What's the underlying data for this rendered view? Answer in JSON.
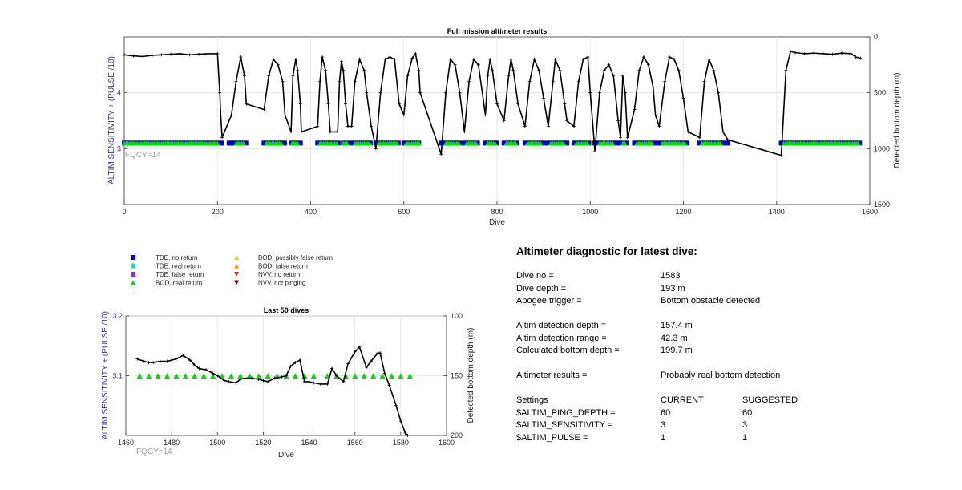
{
  "chart_data": [
    {
      "type": "scatter",
      "title": "Full mission altimeter results",
      "xlabel": "Dive",
      "ylabel_left": "ALTIM SENSITIVITY + (PULSE /10)",
      "ylabel_right": "Detected bottom depth (m)",
      "annotation": "FQCY=14",
      "xlim": [
        0,
        1600
      ],
      "ylim_left": [
        2,
        5
      ],
      "ylim_right": [
        1500,
        0
      ],
      "xticks": [
        "0",
        "200",
        "400",
        "600",
        "800",
        "1000",
        "1200",
        "1400",
        "1600"
      ],
      "yticks_left": [
        "3",
        "4"
      ],
      "yticks_right": [
        "0",
        "500",
        "1000",
        "1500"
      ],
      "grid": true,
      "series": [
        {
          "name": "TDE, no return",
          "color": "#0000cc",
          "marker": "square",
          "y": 3.1,
          "segments": [
            [
              0,
              200
            ],
            [
              205,
              210
            ],
            [
              225,
              262
            ],
            [
              300,
              345
            ],
            [
              358,
              380
            ],
            [
              415,
              460
            ],
            [
              470,
              480
            ],
            [
              488,
              530
            ],
            [
              540,
              590
            ],
            [
              600,
              635
            ],
            [
              680,
              720
            ],
            [
              730,
              760
            ],
            [
              775,
              800
            ],
            [
              815,
              845
            ],
            [
              860,
              900
            ],
            [
              910,
              950
            ],
            [
              965,
              1000
            ],
            [
              1010,
              1060
            ],
            [
              1065,
              1080
            ],
            [
              1095,
              1140
            ],
            [
              1148,
              1210
            ],
            [
              1235,
              1295
            ],
            [
              1410,
              1580
            ]
          ]
        },
        {
          "name": "BOD, real return",
          "color": "#00e000",
          "marker": "triangle",
          "y": 3.1,
          "segments": [
            [
              0,
              200
            ],
            [
              240,
              258
            ],
            [
              305,
              340
            ],
            [
              360,
              375
            ],
            [
              420,
              458
            ],
            [
              470,
              480
            ],
            [
              495,
              528
            ],
            [
              545,
              585
            ],
            [
              605,
              633
            ],
            [
              690,
              718
            ],
            [
              735,
              755
            ],
            [
              780,
              798
            ],
            [
              820,
              840
            ],
            [
              865,
              895
            ],
            [
              915,
              945
            ],
            [
              970,
              995
            ],
            [
              1020,
              1050
            ],
            [
              1070,
              1075
            ],
            [
              1100,
              1135
            ],
            [
              1155,
              1205
            ],
            [
              1240,
              1280
            ],
            [
              1415,
              1575
            ]
          ]
        },
        {
          "name": "Detected bottom depth",
          "color": "#000000",
          "marker": "line-plus",
          "axis": "right",
          "x": [
            0,
            20,
            40,
            60,
            80,
            100,
            120,
            140,
            160,
            180,
            200,
            205,
            207,
            210,
            230,
            240,
            250,
            258,
            262,
            300,
            310,
            320,
            330,
            340,
            345,
            358,
            362,
            368,
            372,
            378,
            380,
            415,
            420,
            425,
            432,
            438,
            442,
            458,
            462,
            466,
            470,
            475,
            480,
            488,
            495,
            505,
            515,
            520,
            530,
            540,
            550,
            560,
            570,
            580,
            590,
            600,
            608,
            618,
            625,
            632,
            635,
            680,
            690,
            700,
            710,
            720,
            730,
            740,
            750,
            760,
            775,
            780,
            785,
            790,
            800,
            815,
            825,
            830,
            835,
            845,
            860,
            870,
            880,
            890,
            900,
            910,
            920,
            925,
            935,
            945,
            950,
            965,
            975,
            985,
            995,
            1000,
            1010,
            1020,
            1030,
            1040,
            1050,
            1060,
            1065,
            1070,
            1075,
            1080,
            1095,
            1105,
            1115,
            1125,
            1135,
            1140,
            1148,
            1160,
            1170,
            1180,
            1190,
            1200,
            1210,
            1235,
            1245,
            1255,
            1265,
            1275,
            1285,
            1295,
            1410,
            1420,
            1430,
            1440,
            1460,
            1480,
            1500,
            1520,
            1540,
            1560,
            1570,
            1580
          ],
          "y": [
            160,
            170,
            175,
            165,
            160,
            155,
            150,
            160,
            155,
            150,
            150,
            500,
            700,
            900,
            700,
            400,
            180,
            350,
            600,
            650,
            350,
            200,
            250,
            400,
            700,
            850,
            350,
            200,
            300,
            600,
            850,
            800,
            400,
            180,
            300,
            600,
            850,
            850,
            400,
            220,
            300,
            600,
            800,
            800,
            400,
            200,
            300,
            500,
            800,
            1000,
            500,
            200,
            180,
            200,
            600,
            700,
            350,
            190,
            150,
            300,
            500,
            1050,
            500,
            200,
            250,
            500,
            850,
            400,
            200,
            250,
            700,
            350,
            200,
            300,
            600,
            750,
            350,
            200,
            300,
            600,
            800,
            400,
            200,
            300,
            550,
            800,
            400,
            200,
            300,
            600,
            750,
            800,
            400,
            200,
            180,
            500,
            1020,
            500,
            300,
            250,
            350,
            750,
            900,
            350,
            500,
            900,
            650,
            300,
            180,
            250,
            450,
            700,
            800,
            400,
            180,
            200,
            300,
            550,
            850,
            900,
            400,
            200,
            300,
            500,
            850,
            920,
            1060,
            300,
            130,
            140,
            150,
            145,
            150,
            155,
            145,
            150,
            180,
            190
          ]
        }
      ]
    },
    {
      "type": "scatter",
      "title": "Last 50 dives",
      "xlabel": "Dive",
      "ylabel_left": "ALTIM SENSITIVITY + (PULSE /10)",
      "ylabel_right": "Detected bottom depth (m)",
      "annotation": "FQCY=14",
      "xlim": [
        1460,
        1600
      ],
      "ylim_left": [
        3.0,
        3.2
      ],
      "ylim_right": [
        200,
        100
      ],
      "xticks": [
        "1460",
        "1480",
        "1500",
        "1520",
        "1540",
        "1560",
        "1580",
        "1600"
      ],
      "yticks_left": [
        "3.1",
        "3.2"
      ],
      "yticks_right": [
        "100",
        "150",
        "200"
      ],
      "grid": true,
      "series": [
        {
          "name": "BOD, real return",
          "color": "#00e000",
          "marker": "triangle",
          "y": 3.1,
          "x": [
            1466,
            1470,
            1474,
            1478,
            1482,
            1486,
            1490,
            1494,
            1498,
            1502,
            1506,
            1510,
            1514,
            1518,
            1522,
            1526,
            1530,
            1534,
            1538,
            1542,
            1548,
            1552,
            1556,
            1560,
            1564,
            1568,
            1572,
            1576,
            1580,
            1584
          ]
        },
        {
          "name": "Detected bottom depth",
          "color": "#000000",
          "marker": "line-plus",
          "axis": "right",
          "x": [
            1465,
            1468,
            1470,
            1472,
            1475,
            1478,
            1480,
            1482,
            1485,
            1488,
            1490,
            1492,
            1495,
            1498,
            1500,
            1503,
            1505,
            1508,
            1510,
            1512,
            1515,
            1518,
            1520,
            1522,
            1525,
            1528,
            1530,
            1532,
            1534,
            1536,
            1538,
            1540,
            1542,
            1545,
            1548,
            1550,
            1552,
            1555,
            1557,
            1560,
            1562,
            1565,
            1567,
            1570,
            1571,
            1573,
            1575,
            1578,
            1580,
            1582,
            1583
          ],
          "y": [
            136,
            138,
            139,
            139,
            138,
            138,
            137,
            136,
            133,
            137,
            141,
            144,
            145,
            148,
            150,
            154,
            155,
            156,
            153,
            152,
            152,
            153,
            154,
            155,
            152,
            151,
            150,
            142,
            139,
            137,
            155,
            155,
            156,
            157,
            157,
            144,
            150,
            155,
            140,
            130,
            126,
            143,
            138,
            131,
            131,
            148,
            158,
            175,
            188,
            198,
            200
          ]
        }
      ]
    }
  ],
  "legend": {
    "items": [
      {
        "label": "TDE, no return",
        "color": "#0000cc",
        "marker": "square"
      },
      {
        "label": "TDE, real return",
        "color": "#33cccc",
        "marker": "square"
      },
      {
        "label": "TDE, false return",
        "color": "#9933cc",
        "marker": "square"
      },
      {
        "label": "BOD, real return",
        "color": "#00e000",
        "marker": "triangle"
      },
      {
        "label": "BOD, possibly false return",
        "color": "#ffcc00",
        "marker": "triangle"
      },
      {
        "label": "BOD, false return",
        "color": "#ff9900",
        "marker": "triangle"
      },
      {
        "label": "NVV, no return",
        "color": "#ee2200",
        "marker": "triangle-down"
      },
      {
        "label": "NVV, not pinging",
        "color": "#880000",
        "marker": "triangle-down"
      }
    ]
  },
  "diagnostic": {
    "title": "Altimeter diagnostic for latest dive:",
    "dive_no_label": "Dive no =",
    "dive_no": "1583",
    "dive_depth_label": "Dive depth =",
    "dive_depth": "193 m",
    "apogee_label": "Apogee trigger =",
    "apogee": "Bottom obstacle detected",
    "detect_depth_label": "Altim detection depth =",
    "detect_depth": "157.4 m",
    "detect_range_label": "Altim detection range =",
    "detect_range": "42.3 m",
    "calc_depth_label": "Calculated bottom depth =",
    "calc_depth": "199.7 m",
    "results_label": "Altimeter results =",
    "results": "Probably real bottom detection",
    "settings_label": "Settings",
    "current_label": "CURRENT",
    "suggested_label": "SUGGESTED",
    "settings": [
      {
        "name": "$ALTIM_PING_DEPTH =",
        "current": "60",
        "suggested": "60"
      },
      {
        "name": "$ALTIM_SENSITIVITY =",
        "current": "3",
        "suggested": "3"
      },
      {
        "name": "$ALTIM_PULSE =",
        "current": "1",
        "suggested": "1"
      }
    ]
  }
}
